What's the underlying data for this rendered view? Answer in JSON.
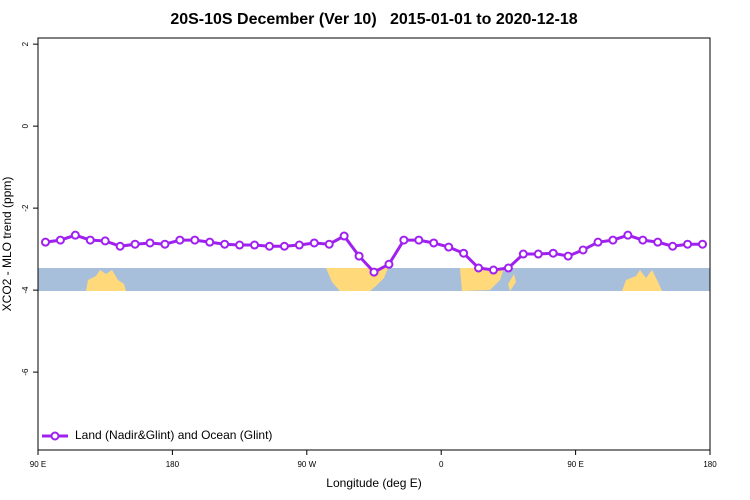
{
  "chart_data": {
    "type": "line",
    "title": "20S-10S December (Ver 10)   2015-01-01 to 2020-12-18",
    "xlabel": "Longitude (deg E)",
    "ylabel": "XCO2 - MLO trend (ppm)",
    "x": [
      95,
      105,
      115,
      125,
      135,
      145,
      155,
      165,
      175,
      185,
      195,
      205,
      215,
      225,
      235,
      245,
      255,
      265,
      275,
      285,
      295,
      305,
      315,
      325,
      335,
      345,
      355,
      365,
      375,
      385,
      395,
      405,
      415,
      425,
      435,
      445,
      455,
      465,
      475,
      485,
      495,
      505,
      515,
      525,
      535
    ],
    "series": [
      {
        "name": "Land (Nadir&Glint) and Ocean (Glint)",
        "color": "#a020f0",
        "values": [
          -2.83,
          -2.78,
          -2.66,
          -2.78,
          -2.8,
          -2.93,
          -2.88,
          -2.85,
          -2.88,
          -2.78,
          -2.78,
          -2.83,
          -2.88,
          -2.9,
          -2.9,
          -2.93,
          -2.93,
          -2.9,
          -2.85,
          -2.88,
          -2.68,
          -3.17,
          -3.56,
          -3.37,
          -2.78,
          -2.78,
          -2.85,
          -2.95,
          -3.1,
          -3.46,
          -3.51,
          -3.46,
          -3.12,
          -3.12,
          -3.1,
          -3.17,
          -3.02,
          -2.83,
          -2.78,
          -2.66,
          -2.78,
          -2.83,
          -2.93,
          -2.88,
          -2.88
        ]
      }
    ],
    "xlim": [
      90,
      540
    ],
    "xticks": [
      {
        "value": 90,
        "label": "90 E"
      },
      180,
      {
        "value": 270,
        "label": "90 W"
      },
      {
        "value": 360,
        "label": "0"
      },
      {
        "value": 450,
        "label": "90 E"
      },
      {
        "value": 540,
        "label": "180"
      }
    ],
    "ylim": [
      -7.9,
      2.15
    ],
    "yticks": [
      2,
      0,
      -2,
      -4,
      -6
    ],
    "legend": "bottom-left"
  }
}
